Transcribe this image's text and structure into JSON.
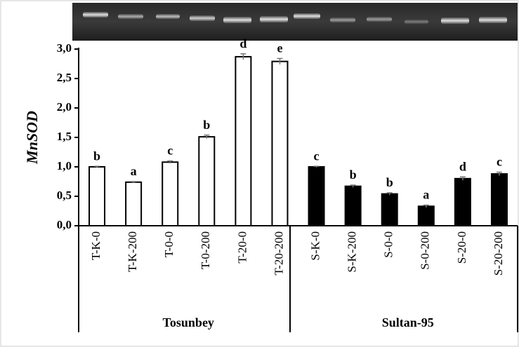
{
  "chart_data": {
    "type": "bar",
    "y_label": "MnSOD",
    "ylim": [
      0,
      3
    ],
    "yticks": [
      {
        "value": 0,
        "label": "0,0"
      },
      {
        "value": 0.5,
        "label": "0,5"
      },
      {
        "value": 1,
        "label": "1,0"
      },
      {
        "value": 1.5,
        "label": "1,5"
      },
      {
        "value": 2,
        "label": "2,0"
      },
      {
        "value": 2.5,
        "label": "2,5"
      },
      {
        "value": 3,
        "label": "3,0"
      }
    ],
    "series": [
      {
        "name": "Tosunbey",
        "color": "#ffffff",
        "categories": [
          "T-K-0",
          "T-K-200",
          "T-0-0",
          "T-0-200",
          "T-20-0",
          "T-20-200"
        ],
        "values": [
          1.0,
          0.74,
          1.08,
          1.51,
          2.87,
          2.79
        ],
        "errors": [
          0.01,
          0.01,
          0.02,
          0.03,
          0.05,
          0.05
        ],
        "letters": [
          "b",
          "a",
          "c",
          "b",
          "d",
          "e"
        ]
      },
      {
        "name": "Sultan-95",
        "color": "#000000",
        "categories": [
          "S-K-0",
          "S-K-200",
          "S-0-0",
          "S-0-200",
          "S-20-0",
          "S-20-200"
        ],
        "values": [
          1.0,
          0.67,
          0.54,
          0.33,
          0.8,
          0.88
        ],
        "errors": [
          0.01,
          0.02,
          0.02,
          0.02,
          0.03,
          0.03
        ],
        "letters": [
          "c",
          "b",
          "b",
          "a",
          "d",
          "c"
        ]
      }
    ]
  }
}
